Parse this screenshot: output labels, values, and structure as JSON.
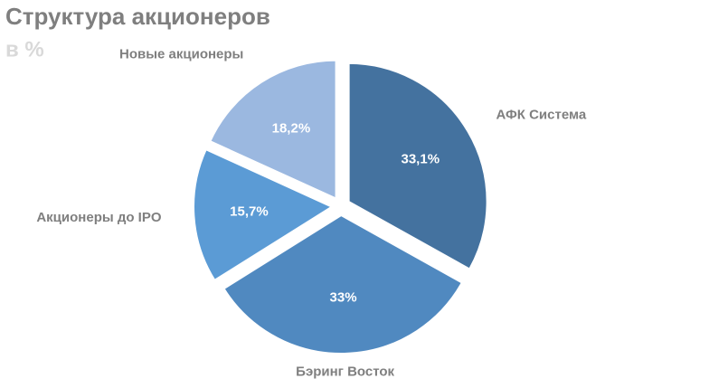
{
  "chart_data": {
    "type": "pie",
    "title": "Структура акционеров",
    "subtitle": "в %",
    "categories": [
      "АФК Система",
      "Бэринг Восток",
      "Акционеры до IPO",
      "Новые акционеры"
    ],
    "values": [
      33.1,
      33,
      15.7,
      18.2
    ],
    "value_labels": [
      "33,1%",
      "33%",
      "15,7%",
      "18,2%"
    ],
    "colors": [
      "#44729f",
      "#5089c0",
      "#5b9bd5",
      "#9bb8e0"
    ]
  }
}
